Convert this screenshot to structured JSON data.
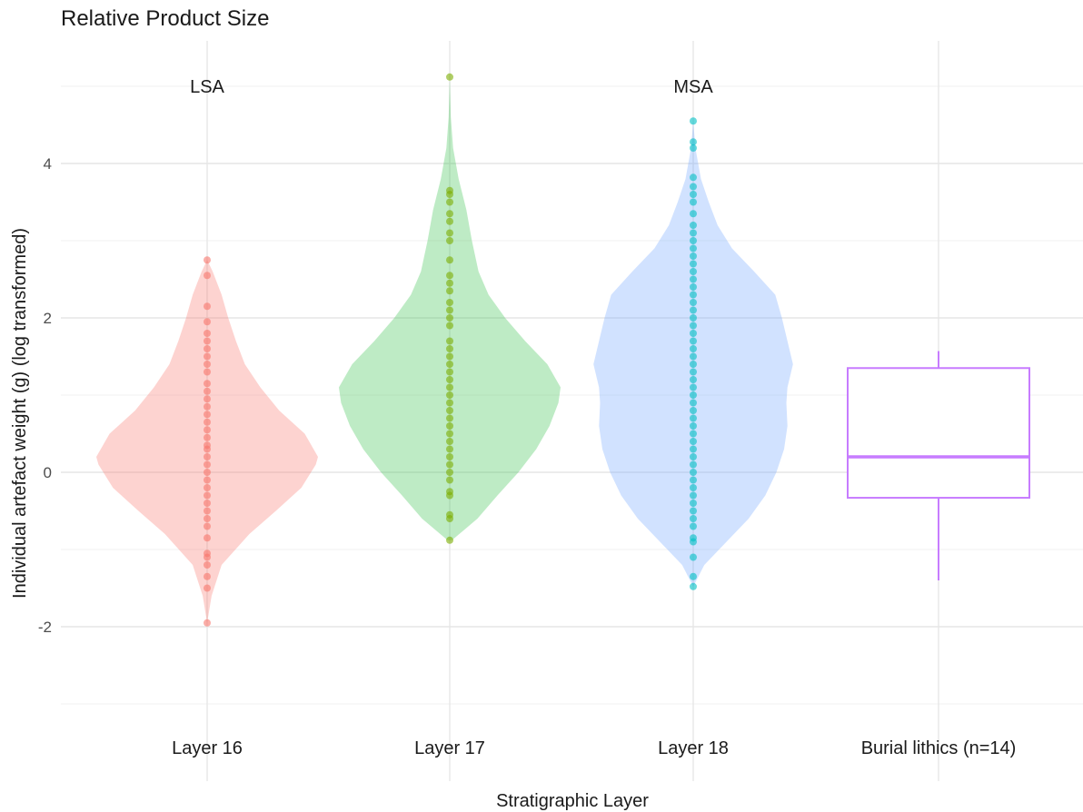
{
  "chart_data": {
    "type": "violin",
    "title": "Relative Product Size",
    "xlabel": "Stratigraphic Layer",
    "ylabel": "Individual artefact weight (g) (log transformed)",
    "ylim": [
      -3,
      5.2
    ],
    "yticks": [
      -2,
      0,
      2,
      4
    ],
    "ytick_labels": [
      "-2",
      "0",
      "2",
      "4"
    ],
    "grid": true,
    "categories": [
      "Layer 16",
      "Layer 17",
      "Layer 18",
      "Burial lithics (n=14)"
    ],
    "annotations": [
      {
        "text": "LSA",
        "category": "Layer 16",
        "y": 5.0
      },
      {
        "text": "MSA",
        "category": "Layer 18",
        "y": 5.0
      }
    ],
    "series": [
      {
        "category": "Layer 16",
        "kind": "violin",
        "color": "#F8766D",
        "fill": "#F8766D",
        "min": -1.95,
        "max": 2.75,
        "density": [
          [
            -1.95,
            0.0
          ],
          [
            -1.6,
            0.04
          ],
          [
            -1.2,
            0.13
          ],
          [
            -0.8,
            0.38
          ],
          [
            -0.5,
            0.62
          ],
          [
            -0.2,
            0.85
          ],
          [
            0.1,
            0.98
          ],
          [
            0.2,
            1.0
          ],
          [
            0.5,
            0.88
          ],
          [
            0.8,
            0.65
          ],
          [
            1.1,
            0.48
          ],
          [
            1.4,
            0.34
          ],
          [
            1.7,
            0.26
          ],
          [
            2.0,
            0.19
          ],
          [
            2.3,
            0.13
          ],
          [
            2.6,
            0.05
          ],
          [
            2.75,
            0.0
          ]
        ],
        "points": [
          -1.95,
          -1.5,
          -1.35,
          -1.2,
          -1.1,
          -1.05,
          -0.85,
          -0.7,
          -0.6,
          -0.5,
          -0.4,
          -0.3,
          -0.2,
          -0.1,
          0.0,
          0.1,
          0.2,
          0.3,
          0.35,
          0.45,
          0.55,
          0.65,
          0.75,
          0.85,
          0.95,
          1.05,
          1.15,
          1.3,
          1.4,
          1.5,
          1.6,
          1.7,
          1.8,
          1.95,
          2.15,
          2.55,
          2.75
        ]
      },
      {
        "category": "Layer 17",
        "kind": "violin",
        "color": "#7CAE00",
        "fill": "#36C24A",
        "min": -0.88,
        "max": 5.12,
        "density": [
          [
            -0.88,
            0.02
          ],
          [
            -0.6,
            0.25
          ],
          [
            -0.3,
            0.43
          ],
          [
            0.0,
            0.62
          ],
          [
            0.3,
            0.78
          ],
          [
            0.6,
            0.9
          ],
          [
            0.9,
            0.98
          ],
          [
            1.1,
            1.0
          ],
          [
            1.4,
            0.88
          ],
          [
            1.7,
            0.68
          ],
          [
            2.0,
            0.5
          ],
          [
            2.3,
            0.35
          ],
          [
            2.6,
            0.26
          ],
          [
            3.0,
            0.2
          ],
          [
            3.4,
            0.15
          ],
          [
            3.8,
            0.08
          ],
          [
            4.2,
            0.03
          ],
          [
            4.6,
            0.01
          ],
          [
            5.12,
            0.0
          ]
        ],
        "points": [
          -0.88,
          -0.6,
          -0.55,
          -0.3,
          -0.25,
          -0.1,
          0.0,
          0.1,
          0.2,
          0.3,
          0.4,
          0.5,
          0.6,
          0.7,
          0.8,
          0.9,
          1.0,
          1.1,
          1.2,
          1.3,
          1.4,
          1.5,
          1.6,
          1.7,
          1.9,
          2.0,
          2.1,
          2.2,
          2.35,
          2.45,
          2.55,
          2.75,
          3.0,
          3.1,
          3.25,
          3.35,
          3.5,
          3.6,
          3.65,
          5.12
        ]
      },
      {
        "category": "Layer 18",
        "kind": "violin",
        "color": "#00BFC4",
        "fill": "#6FA5FF",
        "min": -1.48,
        "max": 4.55,
        "density": [
          [
            -1.48,
            0.0
          ],
          [
            -1.2,
            0.1
          ],
          [
            -0.9,
            0.3
          ],
          [
            -0.6,
            0.5
          ],
          [
            -0.3,
            0.65
          ],
          [
            0.0,
            0.75
          ],
          [
            0.3,
            0.82
          ],
          [
            0.6,
            0.85
          ],
          [
            0.9,
            0.84
          ],
          [
            1.1,
            0.85
          ],
          [
            1.4,
            0.9
          ],
          [
            1.7,
            0.85
          ],
          [
            2.0,
            0.8
          ],
          [
            2.3,
            0.74
          ],
          [
            2.6,
            0.55
          ],
          [
            2.9,
            0.35
          ],
          [
            3.2,
            0.22
          ],
          [
            3.5,
            0.14
          ],
          [
            3.8,
            0.07
          ],
          [
            4.2,
            0.02
          ],
          [
            4.55,
            0.0
          ]
        ],
        "points": [
          -1.48,
          -1.35,
          -1.1,
          -0.9,
          -0.85,
          -0.7,
          -0.6,
          -0.5,
          -0.4,
          -0.3,
          -0.2,
          -0.1,
          0.0,
          0.1,
          0.2,
          0.3,
          0.4,
          0.5,
          0.6,
          0.7,
          0.8,
          0.9,
          1.0,
          1.1,
          1.2,
          1.3,
          1.4,
          1.5,
          1.6,
          1.7,
          1.8,
          1.9,
          2.0,
          2.1,
          2.2,
          2.3,
          2.4,
          2.5,
          2.6,
          2.7,
          2.8,
          2.9,
          3.0,
          3.1,
          3.2,
          3.35,
          3.5,
          3.6,
          3.7,
          3.82,
          4.2,
          4.28,
          4.55
        ]
      },
      {
        "category": "Burial lithics (n=14)",
        "kind": "box",
        "color": "#C77CFF",
        "whisker_low": -1.4,
        "q1": -0.33,
        "median": 0.2,
        "q3": 1.35,
        "whisker_high": 1.57
      }
    ]
  }
}
